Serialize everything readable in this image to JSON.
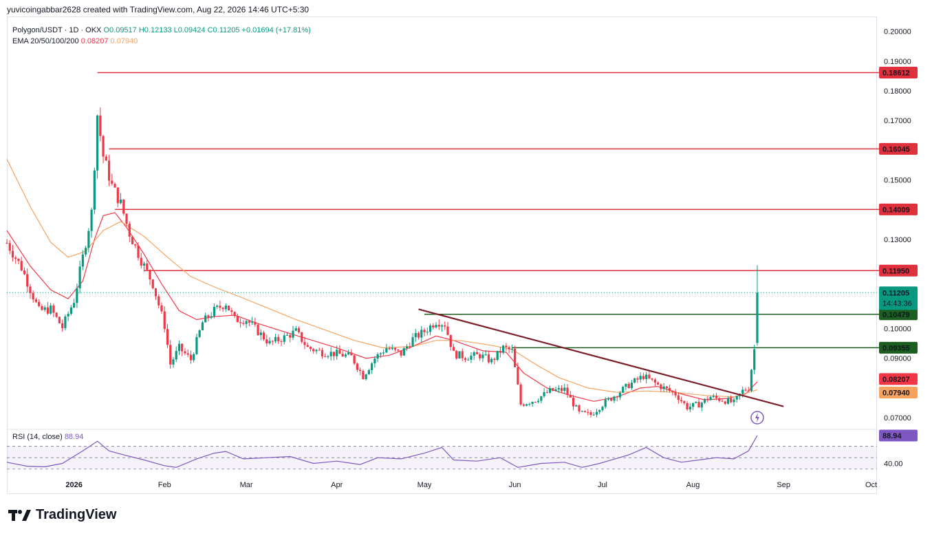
{
  "header": {
    "text": "yuvicoingabbar2628 created with TradingView.com, Aug 22, 2026 14:46 UTC+5:30"
  },
  "legend": {
    "symbol": "Polygon/USDT · 1D · OKX",
    "open": "O0.09517",
    "high": "H0.12133",
    "low": "L0.09424",
    "close": "C0.11205",
    "change": "+0.01694 (+17.81%)",
    "ema_label": "EMA 20/50/100/200",
    "ema20": "0.08207",
    "ema50": "0.07940"
  },
  "rsi": {
    "label": "RSI (14, close)",
    "value": "88.94"
  },
  "logo": {
    "text": "TradingView"
  },
  "colors": {
    "up": "#089981",
    "down": "#f23645",
    "ema20": "#f23645",
    "ema50": "#f7a25e",
    "resistance": "#e0303c",
    "support": "#1b5e20",
    "trendline": "#7b1f2a",
    "rsi": "#7e57c2"
  },
  "chart_data": {
    "type": "line",
    "title": "Polygon/USDT · 1D · OKX",
    "ylim": [
      0.067,
      0.205
    ],
    "price_ticks": [
      "0.07000",
      "0.09000",
      "0.10000",
      "0.13000",
      "0.15000",
      "0.17000",
      "0.18000",
      "0.19000",
      "0.20000"
    ],
    "x_ticks": [
      "2026",
      "Feb",
      "Mar",
      "Apr",
      "May",
      "Jun",
      "Jul",
      "Aug",
      "Sep",
      "Oct"
    ],
    "x_tick_days": [
      0,
      31,
      59,
      90,
      120,
      151,
      181,
      212,
      243,
      273
    ],
    "x_range_days": [
      -23,
      275
    ],
    "horizontal_levels": [
      {
        "value": 0.18612,
        "label": "0.18612",
        "kind": "resistance"
      },
      {
        "value": 0.16045,
        "label": "0.16045",
        "kind": "resistance"
      },
      {
        "value": 0.14009,
        "label": "0.14009",
        "kind": "resistance"
      },
      {
        "value": 0.1195,
        "label": "0.11950",
        "kind": "resistance"
      },
      {
        "value": 0.10479,
        "label": "0.10479",
        "kind": "support"
      },
      {
        "value": 0.09355,
        "label": "0.09355",
        "kind": "support"
      }
    ],
    "trendline": {
      "start": {
        "x_day": 118,
        "y": 0.1065
      },
      "end": {
        "x_day": 243,
        "y": 0.0738
      }
    },
    "last_price": {
      "value": 0.11205,
      "label": "0.11205",
      "countdown": "14:43:36"
    },
    "series": [
      {
        "name": "Polygon/USDT",
        "anchors": [
          [
            -23,
            0.1288
          ],
          [
            -18,
            0.1205
          ],
          [
            -12,
            0.106
          ],
          [
            -8,
            0.1065
          ],
          [
            -4,
            0.1004
          ],
          [
            0,
            0.1095
          ],
          [
            3,
            0.124
          ],
          [
            6,
            0.139
          ],
          [
            8,
            0.172
          ],
          [
            10,
            0.158
          ],
          [
            13,
            0.148
          ],
          [
            16,
            0.142
          ],
          [
            19,
            0.132
          ],
          [
            23,
            0.123
          ],
          [
            27,
            0.115
          ],
          [
            31,
            0.101
          ],
          [
            33,
            0.088
          ],
          [
            36,
            0.0935
          ],
          [
            40,
            0.0895
          ],
          [
            44,
            0.102
          ],
          [
            48,
            0.106
          ],
          [
            52,
            0.1085
          ],
          [
            55,
            0.103
          ],
          [
            59,
            0.103
          ],
          [
            63,
            0.099
          ],
          [
            67,
            0.095
          ],
          [
            72,
            0.097
          ],
          [
            76,
            0.099
          ],
          [
            80,
            0.0935
          ],
          [
            85,
            0.092
          ],
          [
            90,
            0.0915
          ],
          [
            95,
            0.0905
          ],
          [
            99,
            0.084
          ],
          [
            103,
            0.09
          ],
          [
            107,
            0.0935
          ],
          [
            112,
            0.0915
          ],
          [
            116,
            0.0965
          ],
          [
            120,
            0.099
          ],
          [
            124,
            0.1025
          ],
          [
            127,
            0.1015
          ],
          [
            130,
            0.0915
          ],
          [
            134,
            0.0905
          ],
          [
            139,
            0.091
          ],
          [
            143,
            0.089
          ],
          [
            147,
            0.0935
          ],
          [
            150,
            0.0925
          ],
          [
            153,
            0.0745
          ],
          [
            158,
            0.076
          ],
          [
            163,
            0.079
          ],
          [
            168,
            0.0795
          ],
          [
            173,
            0.0715
          ],
          [
            177,
            0.071
          ],
          [
            181,
            0.0745
          ],
          [
            186,
            0.078
          ],
          [
            190,
            0.081
          ],
          [
            195,
            0.084
          ],
          [
            200,
            0.081
          ],
          [
            206,
            0.078
          ],
          [
            210,
            0.0735
          ],
          [
            214,
            0.0745
          ],
          [
            218,
            0.077
          ],
          [
            222,
            0.076
          ],
          [
            226,
            0.075
          ],
          [
            229,
            0.079
          ],
          [
            231,
            0.08
          ],
          [
            233,
            0.093
          ],
          [
            234,
            0.112
          ]
        ]
      },
      {
        "name": "EMA 20",
        "anchors": [
          [
            -23,
            0.133
          ],
          [
            -15,
            0.121
          ],
          [
            -8,
            0.113
          ],
          [
            -2,
            0.11
          ],
          [
            3,
            0.116
          ],
          [
            7,
            0.13
          ],
          [
            10,
            0.138
          ],
          [
            14,
            0.139
          ],
          [
            18,
            0.134
          ],
          [
            24,
            0.125
          ],
          [
            30,
            0.115
          ],
          [
            36,
            0.106
          ],
          [
            42,
            0.103
          ],
          [
            48,
            0.104
          ],
          [
            55,
            0.1045
          ],
          [
            62,
            0.102
          ],
          [
            70,
            0.0995
          ],
          [
            80,
            0.0965
          ],
          [
            90,
            0.0935
          ],
          [
            100,
            0.09
          ],
          [
            108,
            0.091
          ],
          [
            116,
            0.094
          ],
          [
            124,
            0.0975
          ],
          [
            130,
            0.096
          ],
          [
            140,
            0.0925
          ],
          [
            148,
            0.092
          ],
          [
            154,
            0.085
          ],
          [
            162,
            0.08
          ],
          [
            170,
            0.0775
          ],
          [
            178,
            0.0755
          ],
          [
            186,
            0.077
          ],
          [
            194,
            0.08
          ],
          [
            200,
            0.0805
          ],
          [
            208,
            0.078
          ],
          [
            216,
            0.076
          ],
          [
            224,
            0.0765
          ],
          [
            230,
            0.078
          ],
          [
            234,
            0.0821
          ]
        ]
      },
      {
        "name": "EMA 50",
        "anchors": [
          [
            -23,
            0.157
          ],
          [
            -15,
            0.141
          ],
          [
            -8,
            0.129
          ],
          [
            -2,
            0.124
          ],
          [
            4,
            0.126
          ],
          [
            10,
            0.133
          ],
          [
            16,
            0.136
          ],
          [
            24,
            0.131
          ],
          [
            32,
            0.124
          ],
          [
            40,
            0.1175
          ],
          [
            48,
            0.114
          ],
          [
            56,
            0.111
          ],
          [
            66,
            0.107
          ],
          [
            76,
            0.103
          ],
          [
            86,
            0.0995
          ],
          [
            96,
            0.096
          ],
          [
            106,
            0.0935
          ],
          [
            116,
            0.094
          ],
          [
            124,
            0.096
          ],
          [
            132,
            0.096
          ],
          [
            142,
            0.0945
          ],
          [
            150,
            0.093
          ],
          [
            158,
            0.088
          ],
          [
            166,
            0.0835
          ],
          [
            176,
            0.08
          ],
          [
            186,
            0.0785
          ],
          [
            196,
            0.079
          ],
          [
            206,
            0.0785
          ],
          [
            216,
            0.0775
          ],
          [
            226,
            0.077
          ],
          [
            234,
            0.0794
          ]
        ]
      }
    ],
    "rsi": {
      "name": "RSI (14, close)",
      "overbought": 70,
      "oversold": 30,
      "ylim": [
        20,
        95
      ],
      "tick": "40.00",
      "last": 88.94,
      "anchors": [
        [
          -23,
          42
        ],
        [
          -16,
          35
        ],
        [
          -10,
          34
        ],
        [
          -4,
          40
        ],
        [
          3,
          62
        ],
        [
          8,
          79
        ],
        [
          12,
          62
        ],
        [
          17,
          55
        ],
        [
          24,
          46
        ],
        [
          31,
          36
        ],
        [
          35,
          33
        ],
        [
          42,
          48
        ],
        [
          48,
          58
        ],
        [
          52,
          61
        ],
        [
          58,
          48
        ],
        [
          66,
          50
        ],
        [
          74,
          52
        ],
        [
          82,
          40
        ],
        [
          90,
          44
        ],
        [
          98,
          38
        ],
        [
          104,
          50
        ],
        [
          112,
          48
        ],
        [
          120,
          58
        ],
        [
          126,
          68
        ],
        [
          130,
          46
        ],
        [
          138,
          44
        ],
        [
          146,
          50
        ],
        [
          152,
          33
        ],
        [
          160,
          40
        ],
        [
          168,
          42
        ],
        [
          174,
          33
        ],
        [
          180,
          40
        ],
        [
          190,
          55
        ],
        [
          196,
          68
        ],
        [
          202,
          50
        ],
        [
          208,
          42
        ],
        [
          214,
          46
        ],
        [
          220,
          50
        ],
        [
          226,
          48
        ],
        [
          231,
          62
        ],
        [
          234,
          88.94
        ]
      ]
    }
  }
}
